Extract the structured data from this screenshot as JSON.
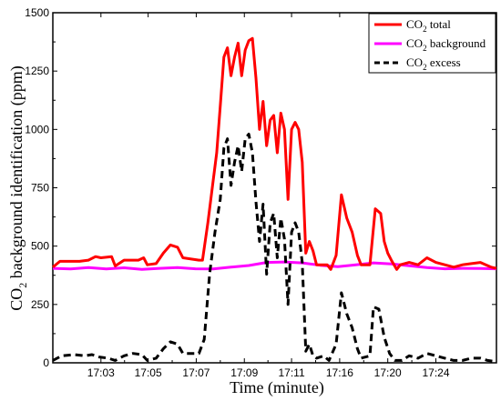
{
  "chart_data": {
    "type": "line",
    "xlabel": "Time (minute)",
    "ylabel_main": "CO",
    "ylabel_sub": "2",
    "ylabel_rest": " background identification (ppm)",
    "ylim": [
      0,
      1500
    ],
    "yticks": [
      0,
      250,
      500,
      750,
      1000,
      1250,
      1500
    ],
    "xlim": [
      0,
      24.9
    ],
    "xticks": [
      {
        "t": 2.7,
        "label": "17:03"
      },
      {
        "t": 5.35,
        "label": "17:05"
      },
      {
        "t": 8.05,
        "label": "17:07"
      },
      {
        "t": 10.75,
        "label": "17:09"
      },
      {
        "t": 13.4,
        "label": "17:11"
      },
      {
        "t": 16.1,
        "label": "17:16"
      },
      {
        "t": 18.8,
        "label": "17:20"
      },
      {
        "t": 21.5,
        "label": "17:24"
      }
    ],
    "legend_position": "top-right",
    "series": [
      {
        "name_main": "CO",
        "name_sub": "2",
        "name_rest": " total",
        "color": "#ff0000",
        "dash": "solid",
        "points": [
          [
            0,
            410
          ],
          [
            0.4,
            435
          ],
          [
            1.5,
            435
          ],
          [
            2,
            440
          ],
          [
            2.4,
            455
          ],
          [
            2.7,
            450
          ],
          [
            3.3,
            455
          ],
          [
            3.5,
            415
          ],
          [
            4,
            440
          ],
          [
            4.8,
            440
          ],
          [
            5.1,
            450
          ],
          [
            5.3,
            420
          ],
          [
            5.8,
            425
          ],
          [
            6.2,
            470
          ],
          [
            6.6,
            505
          ],
          [
            7,
            495
          ],
          [
            7.3,
            450
          ],
          [
            8.2,
            440
          ],
          [
            8.4,
            440
          ],
          [
            8.7,
            600
          ],
          [
            9,
            780
          ],
          [
            9.2,
            900
          ],
          [
            9.4,
            1100
          ],
          [
            9.6,
            1310
          ],
          [
            9.8,
            1350
          ],
          [
            10,
            1230
          ],
          [
            10.2,
            1310
          ],
          [
            10.4,
            1370
          ],
          [
            10.6,
            1230
          ],
          [
            10.8,
            1340
          ],
          [
            11,
            1380
          ],
          [
            11.2,
            1390
          ],
          [
            11.4,
            1220
          ],
          [
            11.6,
            1000
          ],
          [
            11.8,
            1120
          ],
          [
            12,
            930
          ],
          [
            12.2,
            1040
          ],
          [
            12.4,
            1060
          ],
          [
            12.6,
            900
          ],
          [
            12.8,
            1070
          ],
          [
            13,
            1000
          ],
          [
            13.2,
            700
          ],
          [
            13.4,
            1000
          ],
          [
            13.6,
            1030
          ],
          [
            13.8,
            1000
          ],
          [
            14,
            860
          ],
          [
            14.2,
            470
          ],
          [
            14.4,
            520
          ],
          [
            14.6,
            480
          ],
          [
            14.8,
            420
          ],
          [
            15.2,
            420
          ],
          [
            15.4,
            420
          ],
          [
            15.6,
            400
          ],
          [
            15.9,
            460
          ],
          [
            16.2,
            720
          ],
          [
            16.5,
            620
          ],
          [
            16.8,
            560
          ],
          [
            17.1,
            460
          ],
          [
            17.3,
            420
          ],
          [
            17.8,
            420
          ],
          [
            18.1,
            660
          ],
          [
            18.4,
            640
          ],
          [
            18.6,
            520
          ],
          [
            18.8,
            470
          ],
          [
            19,
            440
          ],
          [
            19.3,
            400
          ],
          [
            19.5,
            420
          ],
          [
            20,
            430
          ],
          [
            20.5,
            420
          ],
          [
            21,
            450
          ],
          [
            21.5,
            430
          ],
          [
            22,
            420
          ],
          [
            22.5,
            410
          ],
          [
            23,
            420
          ],
          [
            23.5,
            425
          ],
          [
            24,
            430
          ],
          [
            24.3,
            420
          ],
          [
            24.6,
            410
          ],
          [
            24.9,
            405
          ]
        ]
      },
      {
        "name_main": "CO",
        "name_sub": "2",
        "name_rest": " background",
        "color": "#ff00ff",
        "dash": "solid",
        "points": [
          [
            0,
            405
          ],
          [
            1,
            402
          ],
          [
            2,
            408
          ],
          [
            3,
            402
          ],
          [
            4,
            407
          ],
          [
            5,
            400
          ],
          [
            6,
            405
          ],
          [
            7,
            408
          ],
          [
            8,
            403
          ],
          [
            9,
            402
          ],
          [
            10,
            410
          ],
          [
            11,
            417
          ],
          [
            12,
            430
          ],
          [
            13,
            432
          ],
          [
            14,
            428
          ],
          [
            15,
            418
          ],
          [
            16,
            412
          ],
          [
            17,
            420
          ],
          [
            18,
            428
          ],
          [
            19,
            424
          ],
          [
            20,
            416
          ],
          [
            21,
            408
          ],
          [
            22,
            403
          ],
          [
            23,
            405
          ],
          [
            24,
            404
          ],
          [
            24.9,
            403
          ]
        ]
      },
      {
        "name_main": "CO",
        "name_sub": "2",
        "name_rest": " excess",
        "color": "#000000",
        "dash": "dashed",
        "points": [
          [
            0,
            10
          ],
          [
            0.5,
            30
          ],
          [
            1.2,
            35
          ],
          [
            1.8,
            30
          ],
          [
            2.2,
            35
          ],
          [
            2.6,
            25
          ],
          [
            3.1,
            20
          ],
          [
            3.5,
            10
          ],
          [
            4,
            30
          ],
          [
            4.5,
            40
          ],
          [
            5,
            35
          ],
          [
            5.3,
            10
          ],
          [
            5.8,
            20
          ],
          [
            6.2,
            60
          ],
          [
            6.6,
            90
          ],
          [
            7,
            80
          ],
          [
            7.3,
            40
          ],
          [
            8.2,
            40
          ],
          [
            8.5,
            100
          ],
          [
            8.8,
            380
          ],
          [
            9.1,
            560
          ],
          [
            9.4,
            700
          ],
          [
            9.6,
            920
          ],
          [
            9.8,
            960
          ],
          [
            10,
            760
          ],
          [
            10.2,
            860
          ],
          [
            10.4,
            930
          ],
          [
            10.6,
            820
          ],
          [
            10.8,
            960
          ],
          [
            11,
            980
          ],
          [
            11.2,
            900
          ],
          [
            11.4,
            690
          ],
          [
            11.6,
            520
          ],
          [
            11.8,
            680
          ],
          [
            12,
            380
          ],
          [
            12.2,
            600
          ],
          [
            12.4,
            640
          ],
          [
            12.6,
            450
          ],
          [
            12.8,
            620
          ],
          [
            13,
            530
          ],
          [
            13.2,
            250
          ],
          [
            13.4,
            560
          ],
          [
            13.6,
            600
          ],
          [
            13.8,
            560
          ],
          [
            14,
            430
          ],
          [
            14.2,
            50
          ],
          [
            14.4,
            80
          ],
          [
            14.6,
            30
          ],
          [
            14.8,
            20
          ],
          [
            15.2,
            30
          ],
          [
            15.5,
            10
          ],
          [
            15.9,
            80
          ],
          [
            16.2,
            300
          ],
          [
            16.5,
            210
          ],
          [
            16.8,
            150
          ],
          [
            17.1,
            60
          ],
          [
            17.3,
            20
          ],
          [
            17.8,
            30
          ],
          [
            18,
            240
          ],
          [
            18.3,
            230
          ],
          [
            18.6,
            110
          ],
          [
            18.9,
            40
          ],
          [
            19.2,
            10
          ],
          [
            19.6,
            10
          ],
          [
            20,
            30
          ],
          [
            20.5,
            20
          ],
          [
            21,
            40
          ],
          [
            21.5,
            30
          ],
          [
            22,
            20
          ],
          [
            22.5,
            10
          ],
          [
            23,
            10
          ],
          [
            23.5,
            20
          ],
          [
            24,
            20
          ],
          [
            24.4,
            10
          ],
          [
            24.9,
            5
          ]
        ]
      }
    ]
  }
}
